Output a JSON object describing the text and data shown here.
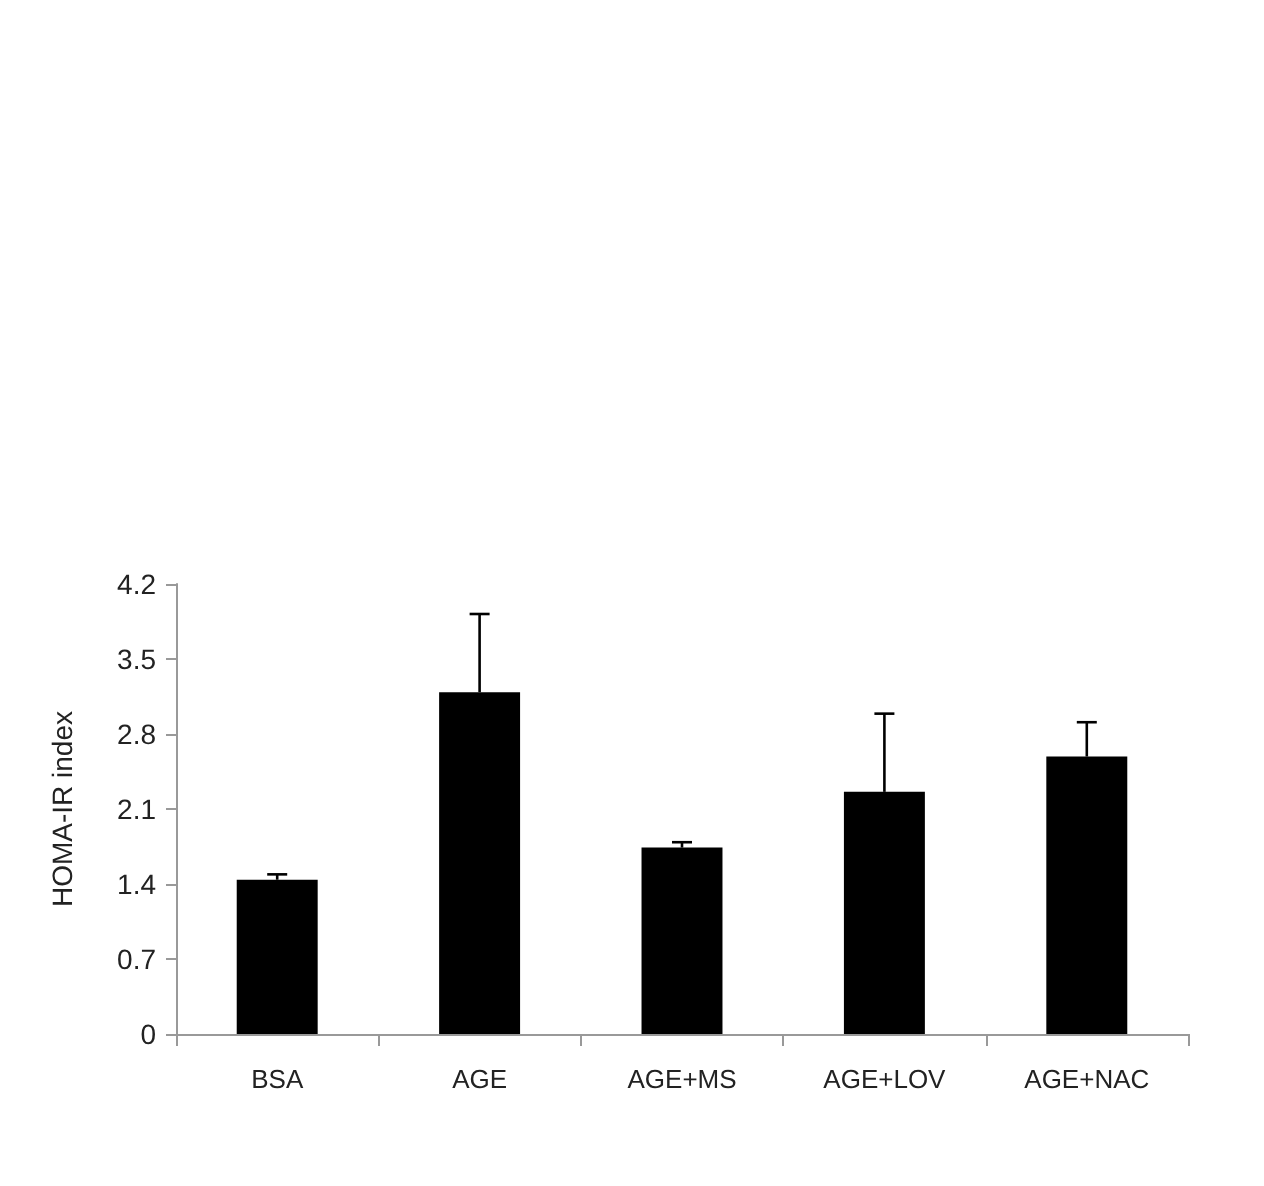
{
  "chart_data": {
    "type": "bar",
    "ylabel": "HOMA-IR index",
    "categories": [
      "BSA",
      "AGE",
      "AGE+MS",
      "AGE+LOV",
      "AGE+NAC"
    ],
    "values": [
      1.44,
      3.19,
      1.74,
      2.26,
      2.59
    ],
    "errors": [
      [
        1.44,
        1.49
      ],
      [
        3.19,
        3.92
      ],
      [
        1.74,
        1.79
      ],
      [
        2.26,
        2.99
      ],
      [
        2.59,
        2.91
      ]
    ],
    "color": "#000000",
    "ylim": [
      0,
      4.2
    ],
    "yticks": [
      0,
      0.7,
      1.4,
      2.1,
      2.8,
      3.5,
      4.2
    ],
    "grid": false
  }
}
